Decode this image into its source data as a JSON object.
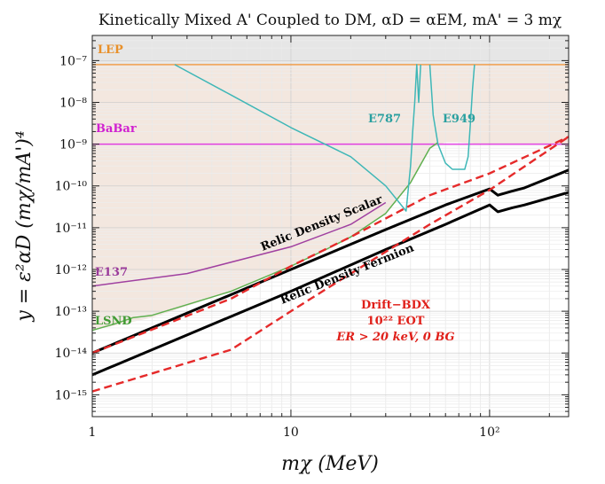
{
  "chart_data": {
    "type": "line",
    "title": "Kinetically Mixed A' Coupled to DM,  αD = αEM,  mA' = 3 mχ",
    "xlabel": "mχ (MeV)",
    "ylabel": "y = ε²αD (mχ/mA')⁴",
    "xscale": "log",
    "yscale": "log",
    "xlim": [
      1,
      250
    ],
    "ylim": [
      3e-16,
      4e-07
    ],
    "x_ticks": [
      {
        "value": 1,
        "label": "1"
      },
      {
        "value": 10,
        "label": "10"
      },
      {
        "value": 100,
        "label": "10²"
      }
    ],
    "y_ticks": [
      {
        "value": 1e-07,
        "label": "10⁻⁷"
      },
      {
        "value": 1e-08,
        "label": "10⁻⁸"
      },
      {
        "value": 1e-09,
        "label": "10⁻⁹"
      },
      {
        "value": 1e-10,
        "label": "10⁻¹⁰"
      },
      {
        "value": 1e-11,
        "label": "10⁻¹¹"
      },
      {
        "value": 1e-12,
        "label": "10⁻¹²"
      },
      {
        "value": 1e-13,
        "label": "10⁻¹³"
      },
      {
        "value": 1e-14,
        "label": "10⁻¹⁴"
      },
      {
        "value": 1e-15,
        "label": "10⁻¹⁵"
      }
    ],
    "excluded_region": {
      "color": "#f3e7df",
      "x": [
        1,
        2,
        5,
        10,
        20,
        30,
        40,
        50,
        60,
        70,
        80,
        90,
        100,
        150,
        250
      ],
      "y": [
        3.5e-14,
        7e-14,
        3e-13,
        1.2e-12,
        6e-12,
        2.2e-11,
        1.2e-10,
        8e-10,
        1.1e-09,
        1.1e-09,
        1.05e-09,
        1e-09,
        1e-09,
        1e-09,
        1e-09
      ]
    },
    "series": [
      {
        "name": "LEP",
        "color": "#f0a050",
        "label_color": "#e8902a",
        "x": [
          1,
          250
        ],
        "y": [
          8e-08,
          8e-08
        ]
      },
      {
        "name": "BaBar",
        "color": "#e040e0",
        "label_color": "#d020d0",
        "x": [
          1,
          13,
          100,
          250
        ],
        "y": [
          1e-09,
          1e-09,
          1e-09,
          1e-09
        ]
      },
      {
        "name": "E137",
        "color": "#a040a0",
        "label_color": "#9a3a9a",
        "x": [
          1,
          3,
          10,
          20,
          30
        ],
        "y": [
          4e-13,
          8e-13,
          3.5e-12,
          1.2e-11,
          4e-11
        ]
      },
      {
        "name": "LSND",
        "color": "#60b050",
        "label_color": "#3f9a33",
        "x": [
          1,
          1.3,
          1.6,
          2,
          5,
          10,
          15,
          20,
          30,
          40,
          50,
          55
        ],
        "y": [
          3.5e-14,
          5e-14,
          7e-14,
          8e-14,
          3e-13,
          1.2e-12,
          3e-12,
          6e-12,
          2.2e-11,
          1.2e-10,
          8e-10,
          1.1e-09
        ]
      },
      {
        "name": "E787",
        "color": "#3fb7b7",
        "label_color": "#2aa0a0",
        "x": [
          2.6,
          5,
          10,
          20,
          30,
          38,
          40,
          41,
          42,
          43,
          44,
          45
        ],
        "y": [
          8e-08,
          1.5e-08,
          2.5e-09,
          5e-10,
          1e-10,
          2.5e-11,
          3e-10,
          2e-09,
          1e-08,
          8e-08,
          1e-08,
          8e-08
        ]
      },
      {
        "name": "E949",
        "color": "#3fb7b7",
        "label_color": "#2aa0a0",
        "x": [
          50,
          52,
          55,
          60,
          65,
          70,
          75,
          78,
          80,
          82,
          84
        ],
        "y": [
          8e-08,
          5e-09,
          1e-09,
          3.5e-10,
          2.5e-10,
          2.5e-10,
          2.5e-10,
          5e-10,
          3e-09,
          2e-08,
          8e-08
        ]
      },
      {
        "name": "Relic Density Scalar",
        "color": "#000000",
        "x": [
          1,
          10,
          30,
          60,
          100,
          110,
          130,
          150,
          250
        ],
        "y": [
          1e-14,
          1e-12,
          9e-12,
          3.5e-11,
          8.5e-11,
          6e-11,
          7.5e-11,
          9e-11,
          2.4e-10
        ]
      },
      {
        "name": "Relic Density Fermion",
        "color": "#000000",
        "x": [
          1,
          10,
          30,
          60,
          100,
          110,
          130,
          150,
          250
        ],
        "y": [
          3e-15,
          3e-13,
          3e-12,
          1.2e-11,
          3.5e-11,
          2.4e-11,
          3e-11,
          3.5e-11,
          7e-11
        ]
      },
      {
        "name": "Drift-BDX upper",
        "color": "#e52a2a",
        "dash": true,
        "x": [
          1,
          5,
          10,
          20,
          50,
          100,
          250
        ],
        "y": [
          1e-14,
          2e-13,
          1.2e-12,
          6e-12,
          6e-11,
          2e-10,
          1.5e-09
        ]
      },
      {
        "name": "Drift-BDX lower",
        "color": "#e52a2a",
        "dash": true,
        "x": [
          1,
          5,
          10,
          20,
          50,
          100,
          250
        ],
        "y": [
          1.2e-15,
          1.2e-14,
          1e-13,
          8e-13,
          1.2e-11,
          8e-11,
          1.5e-09
        ]
      }
    ],
    "labels": {
      "lep": "LEP",
      "babar": "BaBar",
      "e137": "E137",
      "lsnd": "LSND",
      "e787": "E787",
      "e949": "E949",
      "relic_scalar": "Relic Density Scalar",
      "relic_fermion": "Relic Density Fermion",
      "drift_line1": "Drift−BDX",
      "drift_line2": "10²² EOT",
      "drift_line3": "ER > 20 keV, 0 BG"
    }
  }
}
